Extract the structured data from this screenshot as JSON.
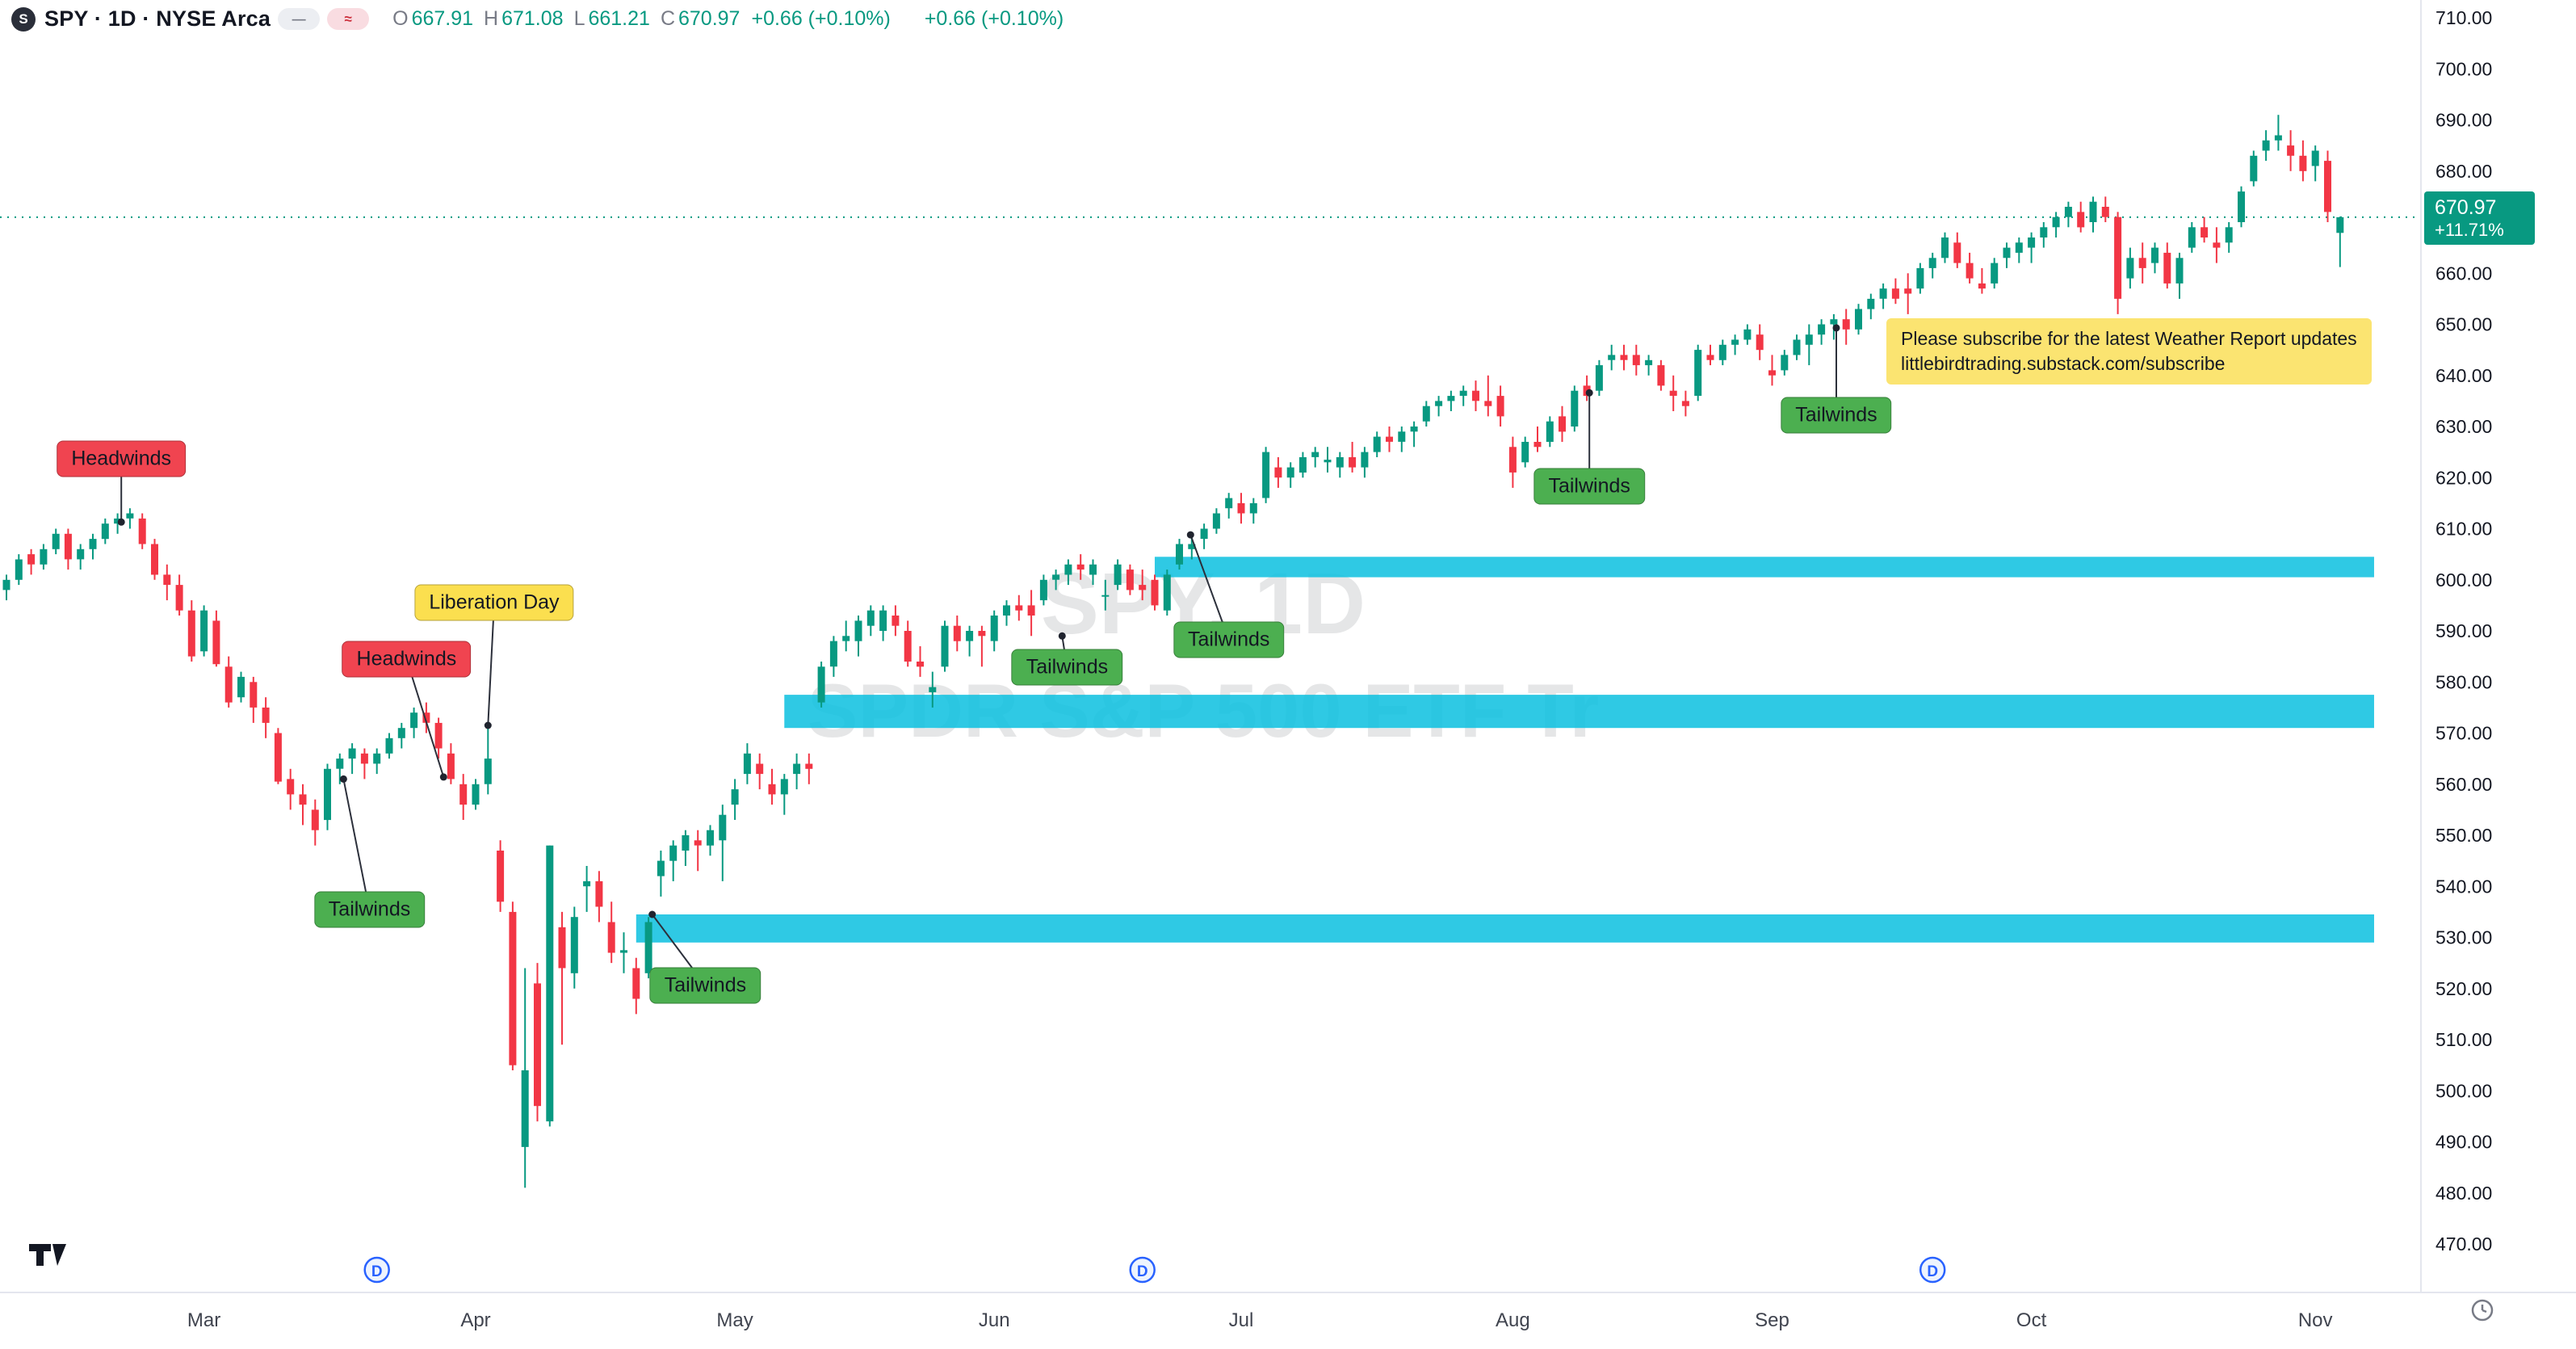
{
  "toolbar": {
    "logo_letter": "S",
    "symbol_title": "SPY · 1D · NYSE Arca",
    "chips": [
      {
        "glyph": "—"
      },
      {
        "glyph": "≈"
      }
    ],
    "ohlc": {
      "o_label": "O",
      "o": "667.91",
      "h_label": "H",
      "h": "671.08",
      "l_label": "L",
      "l": "661.21",
      "c_label": "C",
      "c": "670.97",
      "change": "+0.66 (+0.10%)",
      "change2": "+0.66 (+0.10%)"
    }
  },
  "note": {
    "line1": "Please subscribe for the latest Weather Report updates",
    "line2": "littlebirdtrading.substack.com/subscribe"
  },
  "price_scale": {
    "ticks": [
      "710.00",
      "700.00",
      "690.00",
      "680.00",
      "670.00",
      "660.00",
      "650.00",
      "640.00",
      "630.00",
      "620.00",
      "610.00",
      "600.00",
      "590.00",
      "580.00",
      "570.00",
      "560.00",
      "550.00",
      "540.00",
      "530.00",
      "520.00",
      "510.00",
      "500.00",
      "490.00",
      "480.00",
      "470.00"
    ],
    "current": {
      "price": "670.97",
      "change_pct": "+11.71%"
    }
  },
  "branding": {
    "logo_title": "TradingView"
  },
  "chart_data": {
    "type": "candlestick",
    "title": "SPY, 1D",
    "symbol": "SPY",
    "interval": "1D",
    "exchange": "NYSE Arca",
    "watermark": {
      "line1": "SPY, 1D",
      "line2": "SPDR S&P 500 ETF Tr"
    },
    "up_color": "#089981",
    "down_color": "#f23645",
    "band_color": "#0abfdf",
    "price_axis": {
      "min": 470,
      "max": 710,
      "step": 10
    },
    "current_price": 670.97,
    "current_change_pct": "+11.71%",
    "months": [
      {
        "label": "Mar",
        "index": 16
      },
      {
        "label": "Apr",
        "index": 38
      },
      {
        "label": "May",
        "index": 59
      },
      {
        "label": "Jun",
        "index": 80
      },
      {
        "label": "Jul",
        "index": 100
      },
      {
        "label": "Aug",
        "index": 122
      },
      {
        "label": "Sep",
        "index": 143
      },
      {
        "label": "Oct",
        "index": 164
      },
      {
        "label": "Nov",
        "index": 187
      }
    ],
    "dividend_indices": [
      30,
      92,
      156
    ],
    "dividend_label": "D",
    "bands": [
      {
        "top": 604.5,
        "bottom": 600.5,
        "start_index": 93
      },
      {
        "top": 577.5,
        "bottom": 571.0,
        "start_index": 63
      },
      {
        "top": 534.5,
        "bottom": 529.0,
        "start_index": 51
      }
    ],
    "annotations": [
      {
        "text": "Headwinds",
        "kind": "red",
        "box": {
          "index": 9.3,
          "price": 623.7
        },
        "dot": {
          "index": 9.3,
          "price": 611.3
        }
      },
      {
        "text": "Tailwinds",
        "kind": "green",
        "box": {
          "index": 29.4,
          "price": 535.4
        },
        "dot": {
          "index": 27.3,
          "price": 561.0
        }
      },
      {
        "text": "Headwinds",
        "kind": "red",
        "box": {
          "index": 32.4,
          "price": 584.5
        },
        "dot": {
          "index": 35.4,
          "price": 561.4
        }
      },
      {
        "text": "Liberation Day",
        "kind": "yellow",
        "box": {
          "index": 39.5,
          "price": 595.5
        },
        "dot": {
          "index": 39.0,
          "price": 571.5
        }
      },
      {
        "text": "Tailwinds",
        "kind": "green",
        "box": {
          "index": 56.6,
          "price": 520.6
        },
        "dot": {
          "index": 52.3,
          "price": 534.5
        }
      },
      {
        "text": "Tailwinds",
        "kind": "green",
        "box": {
          "index": 85.9,
          "price": 582.9
        },
        "dot": {
          "index": 85.5,
          "price": 589.0
        }
      },
      {
        "text": "Tailwinds",
        "kind": "green",
        "box": {
          "index": 99.0,
          "price": 588.3
        },
        "dot": {
          "index": 95.9,
          "price": 608.8
        }
      },
      {
        "text": "Tailwinds",
        "kind": "green",
        "box": {
          "index": 128.2,
          "price": 618.3
        },
        "dot": {
          "index": 128.2,
          "price": 636.6
        }
      },
      {
        "text": "Tailwinds",
        "kind": "green",
        "box": {
          "index": 148.2,
          "price": 632.2
        },
        "dot": {
          "index": 148.2,
          "price": 649.3
        }
      }
    ],
    "candles": [
      [
        598,
        601,
        596,
        600
      ],
      [
        600,
        605,
        599,
        604
      ],
      [
        605,
        606,
        601,
        603
      ],
      [
        603,
        607,
        602,
        606
      ],
      [
        606,
        610,
        605,
        609
      ],
      [
        609,
        610,
        602,
        604
      ],
      [
        604,
        607,
        602,
        606
      ],
      [
        606,
        609,
        604,
        608
      ],
      [
        608,
        612,
        607,
        611
      ],
      [
        611,
        613,
        609,
        612
      ],
      [
        612,
        614,
        610,
        613
      ],
      [
        612,
        613,
        606,
        607
      ],
      [
        607,
        608,
        600,
        601
      ],
      [
        601,
        603,
        596,
        599
      ],
      [
        599,
        601,
        593,
        594
      ],
      [
        594,
        596,
        584,
        585
      ],
      [
        586,
        595,
        585,
        594
      ],
      [
        592,
        594,
        583,
        583.5
      ],
      [
        583,
        585,
        575,
        576
      ],
      [
        577,
        582,
        576,
        581
      ],
      [
        580,
        581,
        572,
        575
      ],
      [
        575,
        577,
        569,
        572
      ],
      [
        570,
        571,
        560,
        560.5
      ],
      [
        561,
        563,
        555,
        558
      ],
      [
        558,
        560,
        552,
        556
      ],
      [
        555,
        557,
        548,
        551
      ],
      [
        553,
        564,
        551,
        563
      ],
      [
        563,
        566,
        560,
        565
      ],
      [
        565,
        568,
        562,
        567
      ],
      [
        566,
        567,
        561,
        564
      ],
      [
        564,
        567,
        562,
        566
      ],
      [
        566,
        570,
        565,
        569
      ],
      [
        569,
        572,
        567,
        571
      ],
      [
        571,
        575,
        569,
        574
      ],
      [
        574,
        576,
        570,
        572
      ],
      [
        572,
        573,
        565,
        567
      ],
      [
        566,
        568,
        560,
        561
      ],
      [
        560,
        562,
        553,
        556
      ],
      [
        556,
        561,
        555,
        560
      ],
      [
        560,
        571,
        558,
        565
      ],
      [
        547,
        549,
        535,
        537
      ],
      [
        535,
        537,
        504,
        505
      ],
      [
        489,
        524,
        481,
        504
      ],
      [
        521,
        525,
        494,
        497
      ],
      [
        494,
        548,
        493,
        548
      ],
      [
        532,
        535,
        509,
        524
      ],
      [
        523,
        536,
        520,
        534
      ],
      [
        540,
        544,
        535,
        541
      ],
      [
        541,
        543,
        533,
        536
      ],
      [
        533,
        537,
        525,
        527
      ],
      [
        527,
        531,
        523,
        527.5
      ],
      [
        524,
        526,
        515,
        518
      ],
      [
        523,
        534,
        522,
        533
      ],
      [
        542,
        547,
        538,
        545
      ],
      [
        545,
        549,
        541,
        548
      ],
      [
        547,
        551,
        544,
        550
      ],
      [
        549,
        551,
        543,
        548
      ],
      [
        548,
        552,
        546,
        551
      ],
      [
        549,
        556,
        541,
        554
      ],
      [
        556,
        561,
        553,
        559
      ],
      [
        562,
        568,
        560,
        566
      ],
      [
        564,
        566,
        559,
        562
      ],
      [
        560,
        563,
        556,
        558
      ],
      [
        558,
        562,
        554,
        561
      ],
      [
        562,
        566,
        559,
        564
      ],
      [
        564,
        566,
        560,
        563
      ],
      [
        576,
        584,
        575,
        583
      ],
      [
        583,
        589,
        581,
        588
      ],
      [
        588,
        592,
        586,
        589
      ],
      [
        588,
        593,
        585,
        592
      ],
      [
        591,
        595,
        589,
        594
      ],
      [
        590,
        595,
        588,
        594
      ],
      [
        593,
        595,
        589,
        591
      ],
      [
        590,
        592,
        583,
        584
      ],
      [
        584,
        587,
        581,
        583
      ],
      [
        578,
        582,
        575,
        579
      ],
      [
        583,
        592,
        582,
        591
      ],
      [
        591,
        593,
        586,
        588
      ],
      [
        588,
        591,
        585,
        590
      ],
      [
        590,
        591,
        583,
        589
      ],
      [
        588,
        594,
        586,
        593
      ],
      [
        593,
        596,
        591,
        595
      ],
      [
        595,
        597,
        592,
        594
      ],
      [
        595,
        598,
        589,
        593
      ],
      [
        596,
        601,
        595,
        600
      ],
      [
        600,
        602,
        598,
        601
      ],
      [
        601,
        604,
        599,
        603
      ],
      [
        603,
        605,
        600,
        602
      ],
      [
        601,
        604,
        599,
        603
      ],
      [
        597,
        600,
        594,
        597
      ],
      [
        599,
        604,
        598,
        603
      ],
      [
        602,
        603,
        597,
        598
      ],
      [
        599,
        602,
        596,
        598
      ],
      [
        600,
        601,
        594,
        595
      ],
      [
        594,
        602,
        593,
        601
      ],
      [
        603,
        608,
        602,
        607
      ],
      [
        606,
        609,
        604,
        607
      ],
      [
        608,
        611,
        606,
        610
      ],
      [
        610,
        614,
        609,
        613
      ],
      [
        614,
        617,
        612,
        616
      ],
      [
        615,
        617,
        611,
        613
      ],
      [
        613,
        616,
        611,
        615
      ],
      [
        616,
        626,
        615,
        625
      ],
      [
        622,
        624,
        618,
        620
      ],
      [
        620,
        623,
        618,
        622
      ],
      [
        621,
        625,
        620,
        624
      ],
      [
        624,
        626,
        622,
        625
      ],
      [
        623,
        626,
        621,
        623.5
      ],
      [
        622,
        625,
        620,
        624
      ],
      [
        624,
        627,
        621,
        622
      ],
      [
        622,
        626,
        620,
        625
      ],
      [
        625,
        629,
        624,
        628
      ],
      [
        628,
        630,
        625,
        627
      ],
      [
        627,
        630,
        625,
        629
      ],
      [
        629,
        631,
        626,
        630
      ],
      [
        631,
        635,
        630,
        634
      ],
      [
        634,
        636,
        632,
        635
      ],
      [
        635,
        637,
        633,
        636
      ],
      [
        636,
        638,
        634,
        637
      ],
      [
        637,
        639,
        633,
        635
      ],
      [
        635,
        640,
        632,
        634
      ],
      [
        636,
        638,
        630,
        632
      ],
      [
        626,
        628,
        618,
        621
      ],
      [
        623,
        628,
        622,
        627
      ],
      [
        627,
        630,
        625,
        626
      ],
      [
        627,
        632,
        626,
        631
      ],
      [
        632,
        634,
        627,
        629
      ],
      [
        630,
        638,
        629,
        637
      ],
      [
        638,
        640,
        635,
        636
      ],
      [
        637,
        643,
        636,
        642
      ],
      [
        643,
        646,
        641,
        644
      ],
      [
        644,
        646,
        641,
        643
      ],
      [
        644,
        646,
        640,
        642
      ],
      [
        642,
        644,
        640,
        643
      ],
      [
        642,
        643,
        637,
        638
      ],
      [
        637,
        640,
        633,
        636
      ],
      [
        635,
        637,
        632,
        634
      ],
      [
        636,
        646,
        635,
        645
      ],
      [
        644,
        646,
        642,
        643
      ],
      [
        643,
        647,
        642,
        646
      ],
      [
        646,
        648,
        644,
        647
      ],
      [
        647,
        650,
        646,
        649
      ],
      [
        648,
        650,
        643,
        645
      ],
      [
        641,
        644,
        638,
        640
      ],
      [
        641,
        645,
        640,
        644
      ],
      [
        644,
        648,
        643,
        647
      ],
      [
        646,
        650,
        642,
        648
      ],
      [
        648,
        651,
        646,
        650
      ],
      [
        650,
        652,
        647,
        651
      ],
      [
        651,
        653,
        646,
        649
      ],
      [
        649,
        654,
        648,
        653
      ],
      [
        653,
        656,
        651,
        655
      ],
      [
        655,
        658,
        653,
        657
      ],
      [
        657,
        659,
        654,
        655
      ],
      [
        657,
        660,
        652,
        656
      ],
      [
        657,
        662,
        656,
        661
      ],
      [
        661,
        664,
        659,
        663
      ],
      [
        663,
        668,
        662,
        667
      ],
      [
        666,
        668,
        661,
        662
      ],
      [
        662,
        664,
        658,
        659
      ],
      [
        658,
        661,
        656,
        657
      ],
      [
        658,
        663,
        657,
        662
      ],
      [
        663,
        666,
        661,
        665
      ],
      [
        664,
        667,
        662,
        666
      ],
      [
        665,
        668,
        662,
        667
      ],
      [
        667,
        670,
        665,
        669
      ],
      [
        669,
        672,
        667,
        671
      ],
      [
        671,
        674,
        669,
        673
      ],
      [
        672,
        674,
        668,
        669
      ],
      [
        670,
        675,
        668,
        674
      ],
      [
        673,
        675,
        670,
        671
      ],
      [
        671,
        672,
        652,
        655
      ],
      [
        659,
        665,
        657,
        663
      ],
      [
        663,
        666,
        658,
        661
      ],
      [
        662,
        666,
        660,
        665
      ],
      [
        664,
        666,
        657,
        658
      ],
      [
        658,
        664,
        655,
        663
      ],
      [
        665,
        670,
        664,
        669
      ],
      [
        669,
        671,
        666,
        667
      ],
      [
        666,
        669,
        662,
        665
      ],
      [
        666,
        670,
        664,
        669
      ],
      [
        670,
        677,
        669,
        676
      ],
      [
        678,
        684,
        677,
        683
      ],
      [
        684,
        688,
        682,
        686
      ],
      [
        686,
        691,
        684,
        687
      ],
      [
        685,
        688,
        680,
        683
      ],
      [
        683,
        686,
        678,
        680
      ],
      [
        681,
        685,
        678,
        684
      ],
      [
        682,
        684,
        670,
        672
      ],
      [
        667.91,
        671.08,
        661.21,
        670.97
      ]
    ]
  }
}
